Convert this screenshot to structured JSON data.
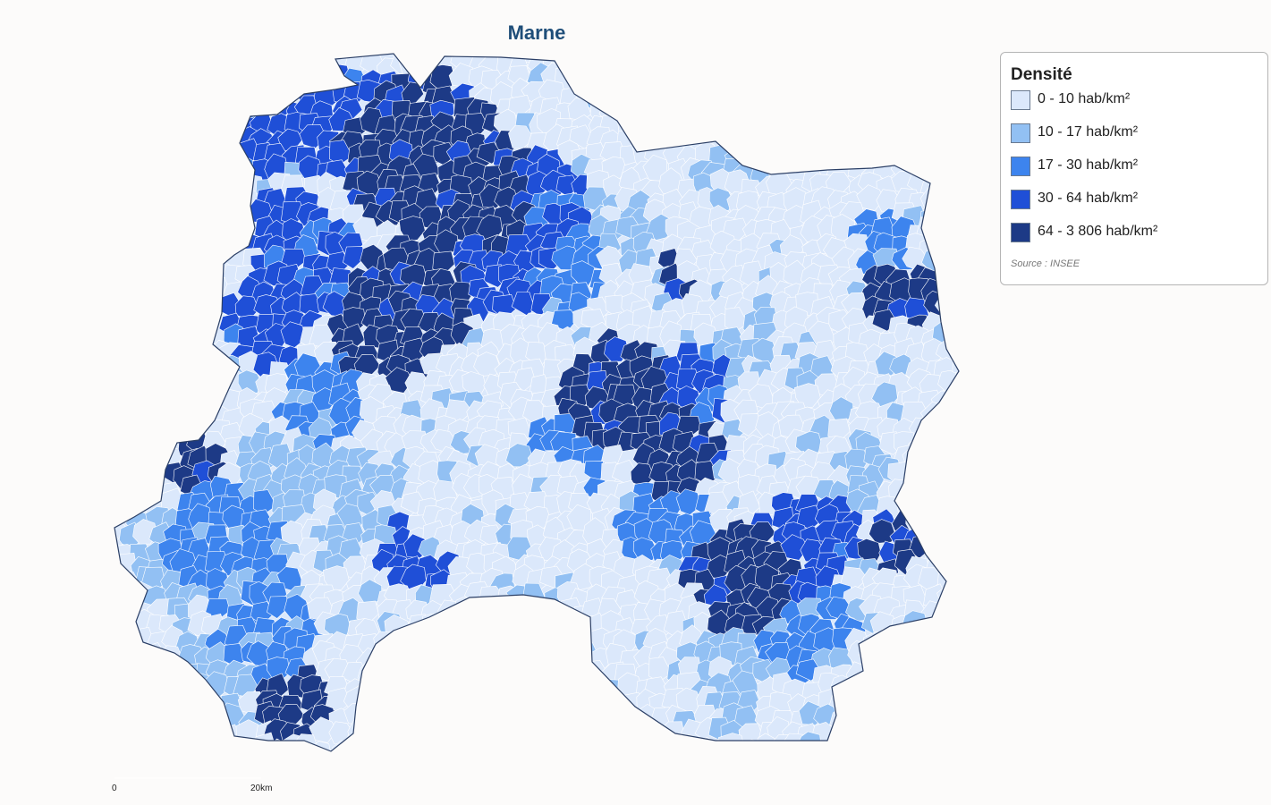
{
  "map": {
    "title": "Marne"
  },
  "legend": {
    "title": "Densité",
    "classes": [
      {
        "label": "0 - 10 hab/km²",
        "color": "#dbe8fb"
      },
      {
        "label": "10 - 17 hab/km²",
        "color": "#92c0f3"
      },
      {
        "label": "17 - 30 hab/km²",
        "color": "#3d84ee"
      },
      {
        "label": "30 - 64 hab/km²",
        "color": "#1f4fd7"
      },
      {
        "label": "64 - 3 806 hab/km²",
        "color": "#1d3a86"
      }
    ],
    "source": "Source : INSEE"
  },
  "scale_bar": {
    "start_label": "0",
    "end_label": "20km"
  }
}
